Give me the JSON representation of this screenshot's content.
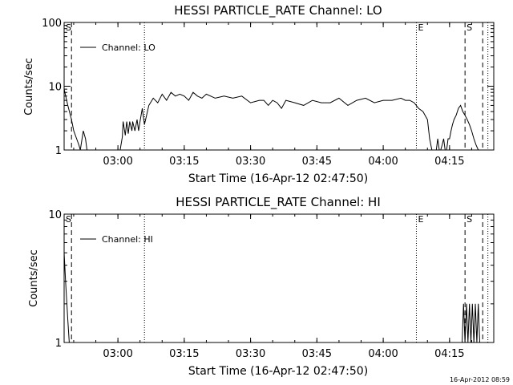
{
  "chart_data": [
    {
      "type": "line",
      "title": "HESSI PARTICLE_RATE Channel: LO",
      "xlabel": "Start Time (16-Apr-12 02:47:50)",
      "ylabel": "Counts/sec",
      "yscale": "log",
      "ylim": [
        1,
        100
      ],
      "y_ticks": [
        "1",
        "10",
        "100"
      ],
      "xlim": [
        "02:47:50",
        "04:25:00"
      ],
      "x_ticks": [
        "03:00",
        "03:15",
        "03:30",
        "03:45",
        "04:00",
        "04:15"
      ],
      "legend": {
        "position": "top-left",
        "entries": [
          "Channel: LO"
        ]
      },
      "markers": [
        {
          "label": "S",
          "time": "02:47:50",
          "style": "dotted"
        },
        {
          "time": "02:49:30",
          "style": "dashed"
        },
        {
          "time": "03:06:00",
          "style": "dotted"
        },
        {
          "label": "E",
          "time": "04:07:30",
          "style": "dotted"
        },
        {
          "label": "S",
          "time": "04:18:30",
          "style": "dashed"
        },
        {
          "time": "04:22:30",
          "style": "dashed"
        },
        {
          "time": "04:23:40",
          "style": "dotted"
        }
      ],
      "series": [
        {
          "name": "Channel: LO",
          "x": [
            "02:47:50",
            "02:48:40",
            "02:49:30",
            "02:50:00",
            "02:50:40",
            "02:51:10",
            "02:51:30",
            "02:52:10",
            "02:52:40",
            "02:53:00",
            "02:54:00",
            "03:00:30",
            "03:01:00",
            "03:01:10",
            "03:01:40",
            "03:02:00",
            "03:02:20",
            "03:02:40",
            "03:03:10",
            "03:03:20",
            "03:03:50",
            "03:04:20",
            "03:04:40",
            "03:05:00",
            "03:05:30",
            "03:06:00",
            "03:07:00",
            "03:08:00",
            "03:09:00",
            "03:10:00",
            "03:11:00",
            "03:12:00",
            "03:13:00",
            "03:14:00",
            "03:15:00",
            "03:16:00",
            "03:17:00",
            "03:18:00",
            "03:19:00",
            "03:20:00",
            "03:22:00",
            "03:24:00",
            "03:26:00",
            "03:28:00",
            "03:30:00",
            "03:32:00",
            "03:33:00",
            "03:34:00",
            "03:35:00",
            "03:36:00",
            "03:37:00",
            "03:38:00",
            "03:40:00",
            "03:42:00",
            "03:44:00",
            "03:46:00",
            "03:48:00",
            "03:50:00",
            "03:52:00",
            "03:54:00",
            "03:56:00",
            "03:58:00",
            "04:00:00",
            "04:02:00",
            "04:04:00",
            "04:05:00",
            "04:06:00",
            "04:07:00",
            "04:08:00",
            "04:09:00",
            "04:10:00",
            "04:10:30",
            "04:11:00",
            "04:11:20",
            "04:11:40",
            "04:12:00",
            "04:12:20",
            "04:12:40",
            "04:13:00",
            "04:13:20",
            "04:13:40",
            "04:14:00",
            "04:14:20",
            "04:14:40",
            "04:15:00",
            "04:15:20",
            "04:15:40",
            "04:16:00",
            "04:16:30",
            "04:17:00",
            "04:17:30",
            "04:18:00",
            "04:18:30",
            "04:19:00",
            "04:19:30",
            "04:20:00",
            "04:20:30",
            "04:21:00",
            "04:21:30",
            "04:22:00",
            "04:22:30",
            "04:23:00",
            "04:23:20",
            "04:23:40"
          ],
          "values": [
            9,
            5,
            3,
            2,
            1.5,
            1.2,
            1,
            2,
            1.5,
            1,
            1,
            1,
            1.6,
            2.8,
            1.7,
            2.8,
            1.8,
            2.8,
            2,
            2.8,
            2,
            3,
            2,
            2.8,
            4.5,
            2.5,
            5,
            6.5,
            5.5,
            7.5,
            6,
            8,
            7,
            7.5,
            7,
            6,
            8,
            7,
            6.5,
            7.5,
            6.5,
            7,
            6.5,
            7,
            5.5,
            6,
            6,
            5,
            6,
            5.5,
            4.5,
            6,
            5.5,
            5,
            6,
            5.5,
            5.5,
            6.5,
            5,
            6,
            6.5,
            5.5,
            6,
            6,
            6.5,
            6,
            6,
            5.5,
            4.5,
            4,
            3,
            1.5,
            1,
            1,
            1,
            1,
            1.5,
            1,
            1,
            1.2,
            1.5,
            1,
            1,
            1.5,
            1.5,
            2,
            2.5,
            3,
            3.5,
            4.5,
            5,
            4,
            3.5,
            3,
            2.5,
            2,
            1.5,
            1.2,
            1,
            1,
            1,
            1,
            1,
            1
          ]
        }
      ]
    },
    {
      "type": "line",
      "title": "HESSI PARTICLE_RATE Channel: HI",
      "xlabel": "Start Time (16-Apr-12 02:47:50)",
      "ylabel": "Counts/sec",
      "yscale": "log",
      "ylim": [
        1,
        10
      ],
      "y_ticks": [
        "1",
        "10"
      ],
      "xlim": [
        "02:47:50",
        "04:25:00"
      ],
      "x_ticks": [
        "03:00",
        "03:15",
        "03:30",
        "03:45",
        "04:00",
        "04:15"
      ],
      "legend": {
        "position": "top-left",
        "entries": [
          "Channel: HI"
        ]
      },
      "markers": [
        {
          "label": "S",
          "time": "02:47:50",
          "style": "dotted"
        },
        {
          "time": "02:49:30",
          "style": "dashed"
        },
        {
          "time": "03:06:00",
          "style": "dotted"
        },
        {
          "label": "E",
          "time": "04:07:30",
          "style": "dotted"
        },
        {
          "label": "S",
          "time": "04:18:30",
          "style": "dashed"
        },
        {
          "time": "04:22:30",
          "style": "dashed"
        },
        {
          "time": "04:23:40",
          "style": "dotted"
        }
      ],
      "series": [
        {
          "name": "Channel: HI",
          "x": [
            "02:47:50",
            "02:48:10",
            "02:48:40",
            "02:49:00",
            "02:50:00",
            "04:17:50",
            "04:18:10",
            "04:18:30",
            "04:18:50",
            "04:19:10",
            "04:19:30",
            "04:19:50",
            "04:20:10",
            "04:20:30",
            "04:20:50",
            "04:21:10",
            "04:21:30",
            "04:21:50",
            "04:22:10"
          ],
          "values": [
            5,
            3,
            1.5,
            1,
            1,
            1,
            2,
            1,
            2,
            1,
            2,
            1,
            2,
            1,
            2,
            1,
            2,
            1,
            1
          ]
        }
      ]
    }
  ],
  "footer": {
    "timestamp": "16-Apr-2012 08:59"
  }
}
